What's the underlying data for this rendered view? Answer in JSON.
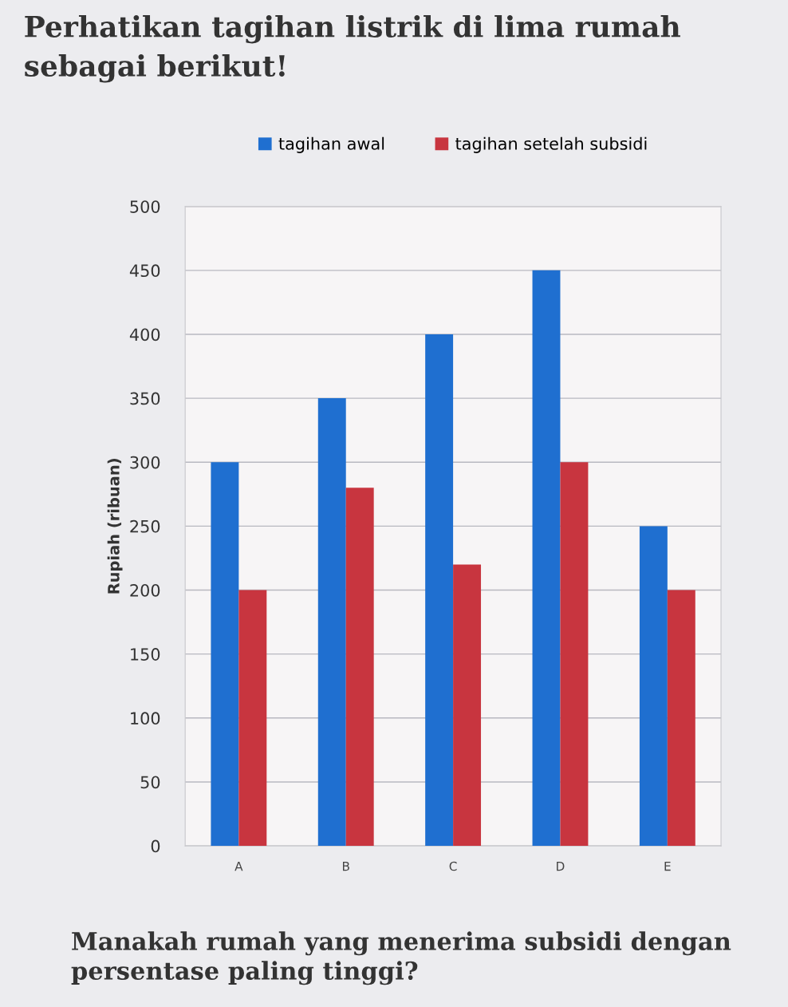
{
  "chart_data": {
    "type": "bar",
    "title": "Perhatikan tagihan listrik di lima rumah sebagai berikut!",
    "ylabel": "Rupiah (ribuan)",
    "categories": [
      "A",
      "B",
      "C",
      "D",
      "E"
    ],
    "series": [
      {
        "name": "tagihan awal",
        "color": "#1f6fd0",
        "values": [
          300,
          350,
          400,
          450,
          250
        ]
      },
      {
        "name": "tagihan setelah subsidi",
        "color": "#c8353f",
        "values": [
          200,
          280,
          220,
          300,
          200
        ]
      }
    ],
    "ylim": [
      0,
      500
    ],
    "yticks": [
      0,
      50,
      100,
      150,
      200,
      250,
      300,
      350,
      400,
      450,
      500
    ],
    "grid": "y",
    "legend": "top",
    "annotations": [
      "Manakah rumah yang menerima subsidi dengan persentase paling tinggi?"
    ]
  }
}
